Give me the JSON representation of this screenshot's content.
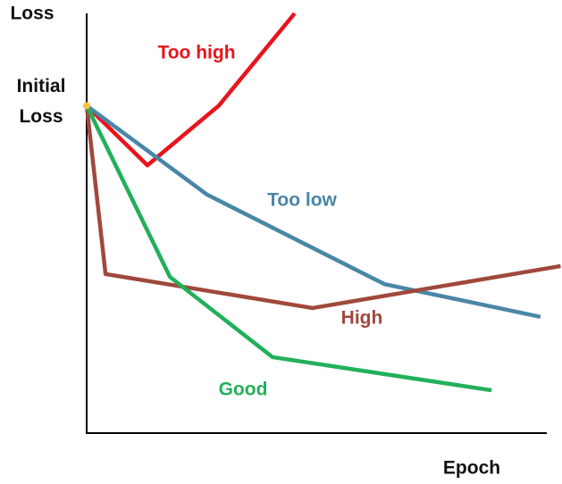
{
  "chart_data": {
    "type": "line",
    "xlabel": "Epoch",
    "ylabel": "Loss",
    "y_annotation": "Initial Loss",
    "xlim": [
      0,
      100
    ],
    "ylim": [
      0,
      100
    ],
    "series": [
      {
        "name": "Too high",
        "color": "#e8141c",
        "x": [
          0,
          13.2,
          28.7,
          45.2
        ],
        "values": [
          78,
          63.8,
          78,
          100
        ]
      },
      {
        "name": "Too low",
        "color": "#4a86a8",
        "x": [
          0,
          26.2,
          64.7,
          98.6
        ],
        "values": [
          78,
          56.8,
          35.5,
          27.7
        ]
      },
      {
        "name": "High",
        "color": "#a0483c",
        "x": [
          0,
          4.1,
          49.1,
          103
        ],
        "values": [
          78,
          37.9,
          29.8,
          39.8
        ]
      },
      {
        "name": "Good",
        "color": "#22b05a",
        "x": [
          0,
          18.1,
          40.4,
          88
        ],
        "values": [
          78,
          37.2,
          18.1,
          10.2
        ]
      }
    ]
  }
}
